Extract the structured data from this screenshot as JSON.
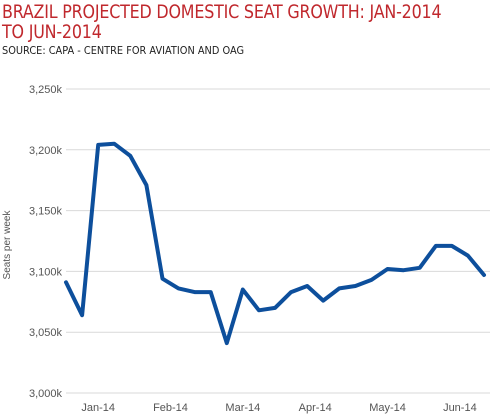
{
  "header": {
    "title": "BRAZIL PROJECTED DOMESTIC SEAT GROWTH: JAN-2014 TO JUN-2014",
    "subtitle": "SOURCE: CAPA - CENTRE FOR AVIATION AND OAG"
  },
  "chart_data": {
    "type": "line",
    "title": "BRAZIL PROJECTED DOMESTIC SEAT GROWTH: JAN-2014 TO JUN-2014",
    "subtitle": "SOURCE: CAPA - CENTRE FOR AVIATION AND OAG",
    "xlabel": "",
    "ylabel": "Seats per week",
    "ylim": [
      3000000,
      3250000
    ],
    "y_ticks": [
      3000000,
      3050000,
      3100000,
      3150000,
      3200000,
      3250000
    ],
    "y_tick_labels": [
      "3,000k",
      "3,050k",
      "3,100k",
      "3,150k",
      "3,200k",
      "3,250k"
    ],
    "x_tick_labels": [
      "Jan-14",
      "Feb-14",
      "Mar-14",
      "Apr-14",
      "May-14",
      "Jun-14"
    ],
    "x_tick_index": [
      2,
      6.5,
      11,
      15.5,
      20,
      24.5
    ],
    "grid": "horizontal",
    "line_color": "#0d4f9c",
    "series": [
      {
        "name": "",
        "values": [
          3091000,
          3064000,
          3204000,
          3205000,
          3195000,
          3171000,
          3094000,
          3086000,
          3083000,
          3083000,
          3041000,
          3085000,
          3068000,
          3070000,
          3083000,
          3088000,
          3076000,
          3086000,
          3088000,
          3093000,
          3102000,
          3101000,
          3103000,
          3121000,
          3121000,
          3113000,
          3097000
        ]
      }
    ]
  }
}
